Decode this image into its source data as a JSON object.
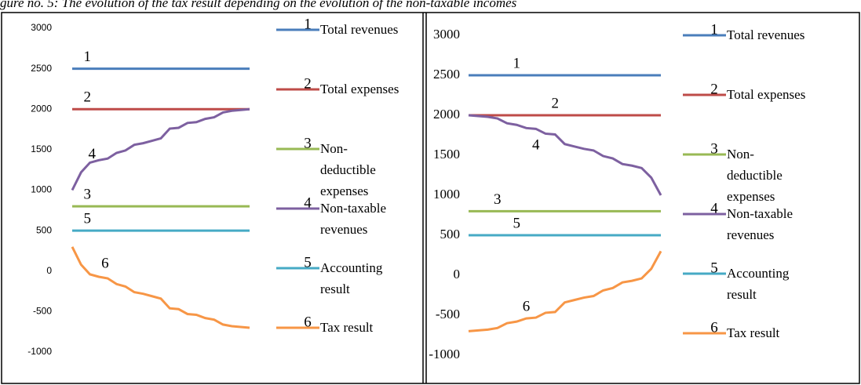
{
  "caption": "gure no. 5: The evolution of the tax result depending on the evolution of the non-taxable incomes",
  "chart_data": [
    {
      "type": "line",
      "ylim": [
        -1000,
        3000
      ],
      "yticks": [
        -1000,
        -500,
        0,
        500,
        1000,
        1500,
        2000,
        2500,
        3000
      ],
      "series": [
        {
          "label": "1",
          "name": "Total revenues",
          "color": "#4a7ebb",
          "values": [
            2500,
            2500,
            2500,
            2500,
            2500,
            2500,
            2500,
            2500,
            2500,
            2500,
            2500,
            2500,
            2500,
            2500,
            2500,
            2500,
            2500,
            2500,
            2500,
            2500,
            2500
          ]
        },
        {
          "label": "2",
          "name": "Total expenses",
          "color": "#be4b48",
          "values": [
            2000,
            2000,
            2000,
            2000,
            2000,
            2000,
            2000,
            2000,
            2000,
            2000,
            2000,
            2000,
            2000,
            2000,
            2000,
            2000,
            2000,
            2000,
            2000,
            2000,
            2000
          ]
        },
        {
          "label": "3",
          "name": "Non-deductible expenses",
          "color": "#98b954",
          "values": [
            800,
            800,
            800,
            800,
            800,
            800,
            800,
            800,
            800,
            800,
            800,
            800,
            800,
            800,
            800,
            800,
            800,
            800,
            800,
            800,
            800
          ]
        },
        {
          "label": "4",
          "name": "Non-taxable revenues",
          "color": "#7d60a0",
          "values": [
            1000,
            1220,
            1340,
            1370,
            1390,
            1460,
            1490,
            1560,
            1580,
            1610,
            1640,
            1760,
            1770,
            1830,
            1840,
            1880,
            1900,
            1960,
            1980,
            1990,
            2000
          ]
        },
        {
          "label": "5",
          "name": "Accounting result",
          "color": "#46aac5",
          "values": [
            500,
            500,
            500,
            500,
            500,
            500,
            500,
            500,
            500,
            500,
            500,
            500,
            500,
            500,
            500,
            500,
            500,
            500,
            500,
            500,
            500
          ]
        },
        {
          "label": "6",
          "name": "Tax result",
          "color": "#f79646",
          "values": [
            300,
            80,
            -40,
            -70,
            -90,
            -160,
            -190,
            -260,
            -280,
            -310,
            -340,
            -460,
            -470,
            -530,
            -540,
            -580,
            -600,
            -660,
            -680,
            -690,
            -700
          ]
        }
      ]
    },
    {
      "type": "line",
      "ylim": [
        -1000,
        3000
      ],
      "yticks": [
        -1000,
        -500,
        0,
        500,
        1000,
        1500,
        2000,
        2500,
        3000
      ],
      "series": [
        {
          "label": "1",
          "name": "Total revenues",
          "color": "#4a7ebb",
          "values": [
            2500,
            2500,
            2500,
            2500,
            2500,
            2500,
            2500,
            2500,
            2500,
            2500,
            2500,
            2500,
            2500,
            2500,
            2500,
            2500,
            2500,
            2500,
            2500,
            2500,
            2500
          ]
        },
        {
          "label": "2",
          "name": "Total expenses",
          "color": "#be4b48",
          "values": [
            2000,
            2000,
            2000,
            2000,
            2000,
            2000,
            2000,
            2000,
            2000,
            2000,
            2000,
            2000,
            2000,
            2000,
            2000,
            2000,
            2000,
            2000,
            2000,
            2000,
            2000
          ]
        },
        {
          "label": "3",
          "name": "Non-deductible expenses",
          "color": "#98b954",
          "values": [
            800,
            800,
            800,
            800,
            800,
            800,
            800,
            800,
            800,
            800,
            800,
            800,
            800,
            800,
            800,
            800,
            800,
            800,
            800,
            800,
            800
          ]
        },
        {
          "label": "4",
          "name": "Non-taxable revenues",
          "color": "#7d60a0",
          "values": [
            2000,
            1990,
            1980,
            1960,
            1900,
            1880,
            1840,
            1830,
            1770,
            1760,
            1640,
            1610,
            1580,
            1560,
            1490,
            1460,
            1390,
            1370,
            1340,
            1220,
            1000
          ]
        },
        {
          "label": "5",
          "name": "Accounting result",
          "color": "#46aac5",
          "values": [
            500,
            500,
            500,
            500,
            500,
            500,
            500,
            500,
            500,
            500,
            500,
            500,
            500,
            500,
            500,
            500,
            500,
            500,
            500,
            500,
            500
          ]
        },
        {
          "label": "6",
          "name": "Tax result",
          "color": "#f79646",
          "values": [
            -700,
            -690,
            -680,
            -660,
            -600,
            -580,
            -540,
            -530,
            -470,
            -460,
            -340,
            -310,
            -280,
            -260,
            -190,
            -160,
            -90,
            -70,
            -40,
            80,
            300
          ]
        }
      ]
    }
  ]
}
